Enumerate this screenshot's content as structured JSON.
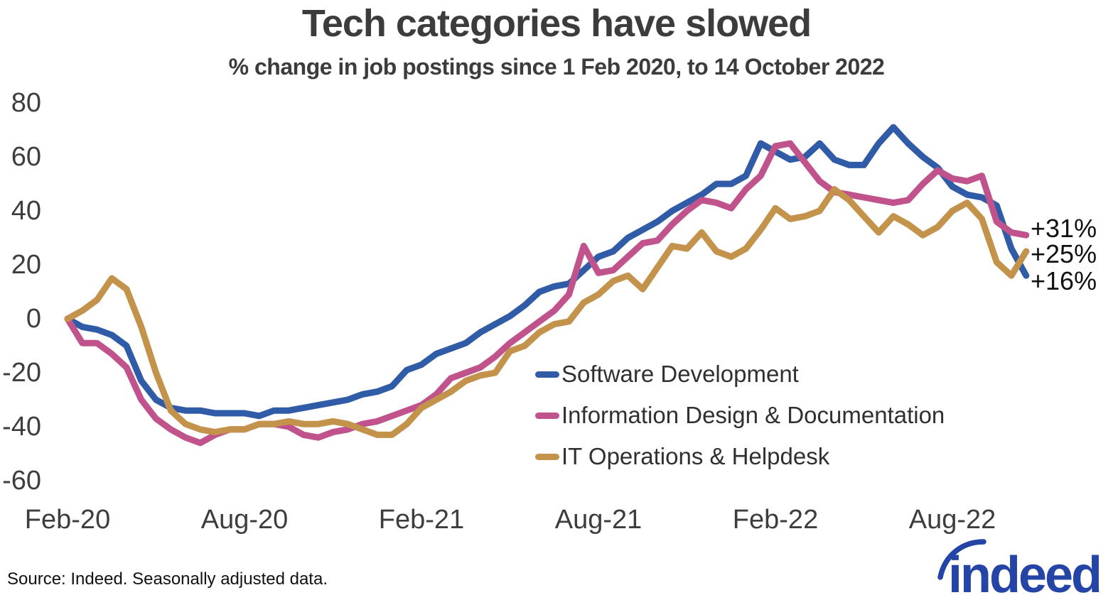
{
  "title": "Tech categories have slowed",
  "subtitle": "% change in job postings since 1 Feb 2020, to 14 October 2022",
  "source_note": "Source: Indeed. Seasonally adjusted data.",
  "logo_text": "indeed",
  "colors": {
    "software_development": "#2f5ba7",
    "information_design_documentation": "#c1538c",
    "it_operations_helpdesk": "#c3924b",
    "title_text": "#3c3c3c",
    "tick_text": "#3d3d3d",
    "logo_blue": "#2445a5"
  },
  "chart_data": {
    "type": "line",
    "title": "Tech categories have slowed",
    "subtitle": "% change in job postings since 1 Feb 2020, to 14 October 2022",
    "x_unit": "months since 1 Feb 2020",
    "ylim": [
      -60,
      80
    ],
    "grid": false,
    "legend_position": "inside-center-right",
    "y_ticks": [
      80,
      60,
      40,
      20,
      0,
      -20,
      -40,
      -60
    ],
    "x_ticks": [
      {
        "label": "Feb-20",
        "month": 0
      },
      {
        "label": "Aug-20",
        "month": 6
      },
      {
        "label": "Feb-21",
        "month": 12
      },
      {
        "label": "Aug-21",
        "month": 18
      },
      {
        "label": "Feb-22",
        "month": 24
      },
      {
        "label": "Aug-22",
        "month": 30
      }
    ],
    "x": [
      0,
      0.5,
      1,
      1.5,
      2,
      2.5,
      3,
      3.5,
      4,
      4.5,
      5,
      5.5,
      6,
      6.5,
      7,
      7.5,
      8,
      8.5,
      9,
      9.5,
      10,
      10.5,
      11,
      11.5,
      12,
      12.5,
      13,
      13.5,
      14,
      14.5,
      15,
      15.5,
      16,
      16.5,
      17,
      17.5,
      18,
      18.5,
      19,
      19.5,
      20,
      20.5,
      21,
      21.5,
      22,
      22.5,
      23,
      23.5,
      24,
      24.5,
      25,
      25.5,
      26,
      26.5,
      27,
      27.5,
      28,
      28.5,
      29,
      29.5,
      30,
      30.5,
      31,
      31.5,
      32,
      32.5
    ],
    "series": [
      {
        "name": "Software Development",
        "color": "#2f5ba7",
        "end_label": "+16%",
        "end_value_pct": 16,
        "values": [
          0,
          -3,
          -4,
          -6,
          -10,
          -23,
          -30,
          -33,
          -34,
          -34,
          -35,
          -35,
          -35,
          -36,
          -34,
          -34,
          -33,
          -32,
          -31,
          -30,
          -28,
          -27,
          -25,
          -19,
          -17,
          -13,
          -11,
          -9,
          -5,
          -2,
          1,
          5,
          10,
          12,
          13,
          18,
          23,
          25,
          30,
          33,
          36,
          40,
          43,
          46,
          50,
          50,
          53,
          65,
          62,
          59,
          60,
          65,
          59,
          57,
          57,
          65,
          71,
          65,
          60,
          56,
          49,
          46,
          45,
          42,
          26,
          16
        ]
      },
      {
        "name": "Information Design & Documentation",
        "color": "#c1538c",
        "end_label": "+31%",
        "end_value_pct": 31,
        "values": [
          0,
          -9,
          -9,
          -13,
          -18,
          -30,
          -37,
          -41,
          -44,
          -46,
          -43,
          -41,
          -41,
          -39,
          -39,
          -40,
          -43,
          -44,
          -42,
          -41,
          -39,
          -38,
          -36,
          -34,
          -32,
          -28,
          -22,
          -20,
          -18,
          -14,
          -9,
          -5,
          -1,
          3,
          9,
          27,
          17,
          18,
          23,
          28,
          29,
          35,
          40,
          44,
          43,
          41,
          48,
          53,
          64,
          65,
          58,
          51,
          47,
          46,
          45,
          44,
          43,
          44,
          50,
          55,
          52,
          51,
          53,
          36,
          32,
          31
        ]
      },
      {
        "name": "IT Operations & Helpdesk",
        "color": "#c3924b",
        "end_label": "+25%",
        "end_value_pct": 25,
        "values": [
          0,
          3,
          7,
          15,
          11,
          -3,
          -20,
          -34,
          -39,
          -41,
          -42,
          -41,
          -41,
          -39,
          -39,
          -38,
          -39,
          -39,
          -38,
          -39,
          -41,
          -43,
          -43,
          -39,
          -33,
          -30,
          -27,
          -23,
          -21,
          -20,
          -12,
          -10,
          -5,
          -2,
          -1,
          6,
          9,
          14,
          16,
          11,
          19,
          27,
          26,
          32,
          25,
          23,
          26,
          33,
          41,
          37,
          38,
          40,
          48,
          44,
          38,
          32,
          38,
          35,
          31,
          34,
          40,
          43,
          37,
          21,
          16,
          25
        ]
      }
    ]
  }
}
